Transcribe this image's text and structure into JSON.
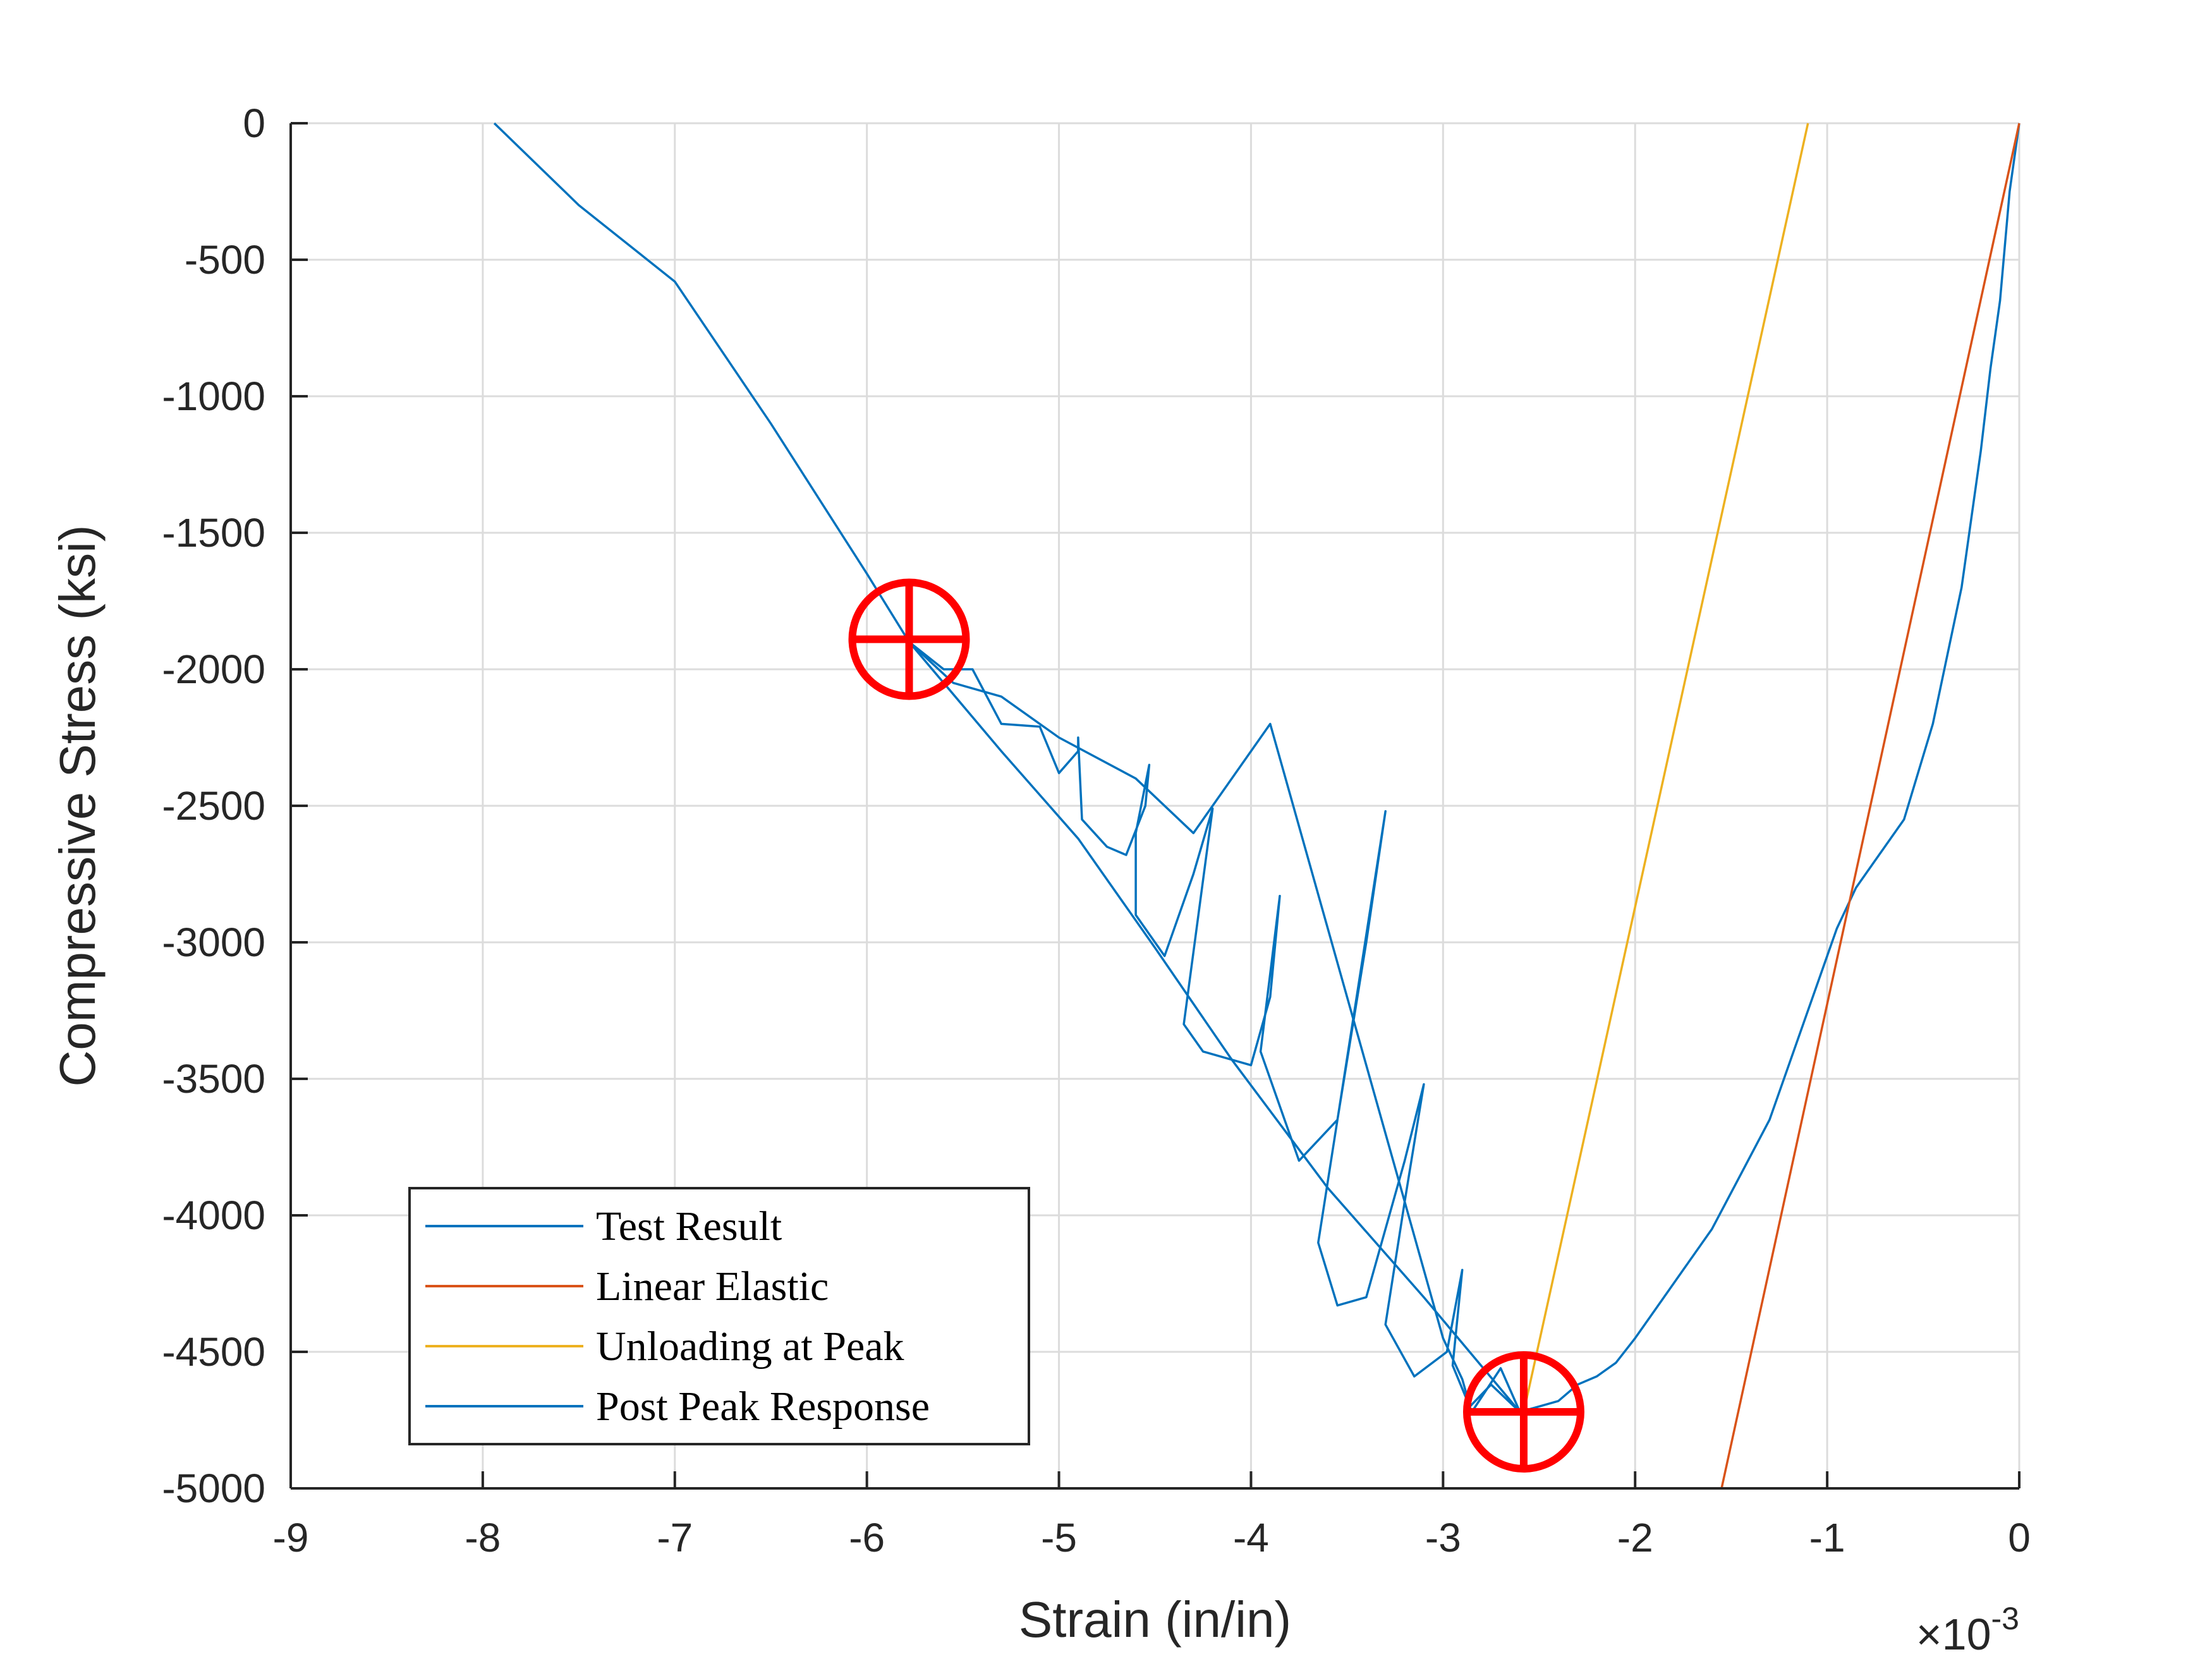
{
  "chart_data": {
    "type": "line",
    "xlabel": "Strain (in/in)",
    "ylabel": "Compressive Stress (ksi)",
    "x_multiplier": {
      "base": "×10",
      "exponent": "-3"
    },
    "xlim": [
      -9,
      0
    ],
    "ylim": [
      -5000,
      0
    ],
    "x_unit_scale": 0.001,
    "xticks": [
      -9,
      -8,
      -7,
      -6,
      -5,
      -4,
      -3,
      -2,
      -1,
      0
    ],
    "yticks": [
      0,
      -500,
      -1000,
      -1500,
      -2000,
      -2500,
      -3000,
      -3500,
      -4000,
      -4500,
      -5000
    ],
    "xtick_labels": [
      "-9",
      "-8",
      "-7",
      "-6",
      "-5",
      "-4",
      "-3",
      "-2",
      "-1",
      "0"
    ],
    "ytick_labels": [
      "0",
      "-500",
      "-1000",
      "-1500",
      "-2000",
      "-2500",
      "-3000",
      "-3500",
      "-4000",
      "-4500",
      "-5000"
    ],
    "grid": true,
    "legend_position": "bottom-left",
    "series": [
      {
        "name": "Test Result",
        "color": "#0072BD",
        "points": [
          [
            0,
            0
          ],
          [
            -0.05,
            -250
          ],
          [
            -0.1,
            -650
          ],
          [
            -0.15,
            -900
          ],
          [
            -0.2,
            -1200
          ],
          [
            -0.3,
            -1700
          ],
          [
            -0.45,
            -2200
          ],
          [
            -0.6,
            -2550
          ],
          [
            -0.75,
            -2700
          ],
          [
            -0.85,
            -2800
          ],
          [
            -0.95,
            -2950
          ],
          [
            -1.05,
            -3150
          ],
          [
            -1.2,
            -3450
          ],
          [
            -1.3,
            -3650
          ],
          [
            -1.45,
            -3850
          ],
          [
            -1.6,
            -4050
          ],
          [
            -1.75,
            -4200
          ],
          [
            -1.9,
            -4350
          ],
          [
            -2.0,
            -4450
          ],
          [
            -2.1,
            -4540
          ],
          [
            -2.2,
            -4590
          ],
          [
            -2.3,
            -4620
          ],
          [
            -2.4,
            -4680
          ],
          [
            -2.5,
            -4700
          ],
          [
            -2.6,
            -4720
          ]
        ]
      },
      {
        "name": "Linear Elastic",
        "color": "#D95319",
        "points": [
          [
            0,
            0
          ],
          [
            -1.55,
            -5000
          ]
        ]
      },
      {
        "name": "Unloading at Peak",
        "color": "#EDB120",
        "points": [
          [
            -2.58,
            -4720
          ],
          [
            -1.1,
            0
          ]
        ]
      },
      {
        "name": "Post Peak Response",
        "color": "#0072BD",
        "points": [
          [
            -2.6,
            -4720
          ],
          [
            -2.75,
            -4620
          ],
          [
            -2.86,
            -4700
          ],
          [
            -2.9,
            -4600
          ],
          [
            -3.0,
            -4450
          ],
          [
            -3.1,
            -4200
          ],
          [
            -3.2,
            -3950
          ],
          [
            -3.3,
            -3700
          ],
          [
            -3.4,
            -3450
          ],
          [
            -3.5,
            -3200
          ],
          [
            -3.6,
            -2950
          ],
          [
            -3.7,
            -2700
          ],
          [
            -3.8,
            -2450
          ],
          [
            -3.9,
            -2200
          ],
          [
            -4.1,
            -2400
          ],
          [
            -4.3,
            -2600
          ],
          [
            -4.6,
            -2400
          ],
          [
            -5.0,
            -2250
          ],
          [
            -5.3,
            -2100
          ],
          [
            -5.55,
            -2050
          ],
          [
            -5.78,
            -1900
          ],
          [
            -6.0,
            -1650
          ],
          [
            -6.5,
            -1100
          ],
          [
            -7.0,
            -580
          ],
          [
            -7.5,
            -300
          ],
          [
            -7.94,
            0
          ]
        ]
      },
      {
        "name": "",
        "color": "#0072BD",
        "points": [
          [
            -5.78,
            -1900
          ],
          [
            -5.6,
            -2000
          ],
          [
            -5.45,
            -2000
          ],
          [
            -5.3,
            -2200
          ],
          [
            -5.1,
            -2210
          ],
          [
            -5.0,
            -2380
          ],
          [
            -4.9,
            -2300
          ],
          [
            -4.9,
            -2250
          ],
          [
            -4.88,
            -2550
          ],
          [
            -4.75,
            -2650
          ],
          [
            -4.65,
            -2680
          ],
          [
            -4.55,
            -2500
          ],
          [
            -4.53,
            -2350
          ],
          [
            -4.6,
            -2600
          ],
          [
            -4.6,
            -2900
          ],
          [
            -4.45,
            -3050
          ],
          [
            -4.3,
            -2750
          ],
          [
            -4.2,
            -2510
          ],
          [
            -4.35,
            -3300
          ],
          [
            -4.25,
            -3400
          ],
          [
            -4.0,
            -3450
          ],
          [
            -3.9,
            -3200
          ],
          [
            -3.85,
            -2830
          ],
          [
            -3.95,
            -3400
          ],
          [
            -3.75,
            -3800
          ],
          [
            -3.55,
            -3650
          ],
          [
            -3.4,
            -3000
          ],
          [
            -3.3,
            -2520
          ],
          [
            -3.45,
            -3200
          ],
          [
            -3.65,
            -4100
          ],
          [
            -3.55,
            -4330
          ],
          [
            -3.4,
            -4300
          ],
          [
            -3.2,
            -3800
          ],
          [
            -3.1,
            -3520
          ],
          [
            -3.2,
            -3950
          ],
          [
            -3.3,
            -4400
          ],
          [
            -3.15,
            -4590
          ],
          [
            -2.98,
            -4500
          ],
          [
            -2.9,
            -4200
          ],
          [
            -2.95,
            -4550
          ],
          [
            -2.85,
            -4720
          ],
          [
            -2.7,
            -4560
          ],
          [
            -2.6,
            -4720
          ]
        ]
      },
      {
        "name": "",
        "color": "#0072BD",
        "points": [
          [
            -5.78,
            -1900
          ],
          [
            -5.3,
            -2300
          ],
          [
            -4.9,
            -2620
          ],
          [
            -4.5,
            -3020
          ],
          [
            -4.1,
            -3430
          ],
          [
            -3.6,
            -3900
          ],
          [
            -3.1,
            -4300
          ],
          [
            -2.6,
            -4720
          ]
        ]
      }
    ],
    "markers": [
      {
        "name": "peak",
        "x": -2.58,
        "y": -4720,
        "color": "#FF0000"
      },
      {
        "name": "post-peak-point",
        "x": -5.78,
        "y": -1890,
        "color": "#FF0000"
      }
    ]
  }
}
